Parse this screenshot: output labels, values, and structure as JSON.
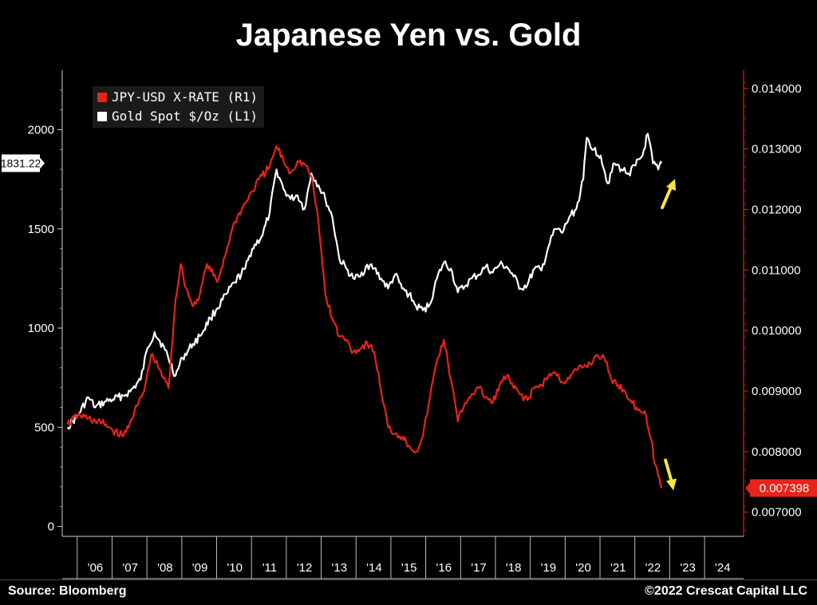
{
  "title": "Japanese Yen vs. Gold",
  "source": "Source: Bloomberg",
  "copyright": "©2022 Crescat Capital LLC",
  "legend": [
    {
      "label": "JPY-USD X-RATE (R1)",
      "color": "#e8231a"
    },
    {
      "label": "Gold Spot $/Oz (L1)",
      "color": "#ffffff"
    }
  ],
  "chart_data": {
    "type": "line",
    "title": "Japanese Yen vs. Gold",
    "x_tick_labels": [
      "'06",
      "'07",
      "'08",
      "'09",
      "'10",
      "'11",
      "'12",
      "'13",
      "'14",
      "'15",
      "'16",
      "'17",
      "'18",
      "'19",
      "'20",
      "'21",
      "'22",
      "'23",
      "'24"
    ],
    "y_left": {
      "ticks": [
        "0",
        "500",
        "1000",
        "1500",
        "2000"
      ],
      "range": [
        -50,
        2300
      ],
      "last_value_label": "1831.22"
    },
    "y_right": {
      "ticks": [
        "0.007000",
        "0.008000",
        "0.009000",
        "0.010000",
        "0.011000",
        "0.012000",
        "0.013000",
        "0.014000"
      ],
      "range": [
        0.0066,
        0.0143
      ],
      "last_value_label": "0.007398"
    },
    "grid": false,
    "legend_position": "top-left",
    "annotations": [
      {
        "text": "up arrow",
        "color": "#f5e642",
        "series": "Gold Spot $/Oz (L1)"
      },
      {
        "text": "down arrow",
        "color": "#f5e642",
        "series": "JPY-USD X-RATE (R1)"
      }
    ],
    "series": [
      {
        "name": "Gold Spot $/Oz (L1)",
        "axis": "left",
        "color": "#ffffff",
        "x": [
          2005.7,
          2006.0,
          2006.3,
          2006.5,
          2006.8,
          2007.0,
          2007.3,
          2007.5,
          2007.8,
          2008.0,
          2008.2,
          2008.5,
          2008.8,
          2009.0,
          2009.3,
          2009.5,
          2009.8,
          2010.0,
          2010.3,
          2010.5,
          2010.8,
          2011.0,
          2011.3,
          2011.5,
          2011.7,
          2011.9,
          2012.1,
          2012.3,
          2012.5,
          2012.7,
          2012.9,
          2013.1,
          2013.3,
          2013.5,
          2013.7,
          2013.9,
          2014.1,
          2014.3,
          2014.5,
          2014.7,
          2014.9,
          2015.1,
          2015.3,
          2015.5,
          2015.7,
          2015.9,
          2016.1,
          2016.3,
          2016.5,
          2016.7,
          2016.9,
          2017.1,
          2017.3,
          2017.5,
          2017.7,
          2017.9,
          2018.1,
          2018.3,
          2018.5,
          2018.7,
          2018.9,
          2019.1,
          2019.3,
          2019.5,
          2019.7,
          2019.9,
          2020.1,
          2020.3,
          2020.5,
          2020.6,
          2020.8,
          2021.0,
          2021.2,
          2021.4,
          2021.6,
          2021.8,
          2022.0,
          2022.2,
          2022.35,
          2022.5,
          2022.65,
          2022.75
        ],
        "values": [
          500,
          560,
          650,
          600,
          630,
          640,
          660,
          680,
          740,
          900,
          980,
          890,
          760,
          850,
          920,
          960,
          1050,
          1100,
          1180,
          1230,
          1300,
          1400,
          1470,
          1580,
          1800,
          1700,
          1650,
          1670,
          1600,
          1780,
          1720,
          1650,
          1560,
          1350,
          1300,
          1250,
          1260,
          1320,
          1300,
          1250,
          1200,
          1270,
          1200,
          1170,
          1110,
          1090,
          1120,
          1250,
          1330,
          1300,
          1180,
          1210,
          1250,
          1270,
          1310,
          1280,
          1320,
          1310,
          1260,
          1200,
          1220,
          1300,
          1290,
          1410,
          1500,
          1480,
          1560,
          1600,
          1750,
          1960,
          1900,
          1870,
          1730,
          1830,
          1800,
          1780,
          1820,
          1870,
          1980,
          1830,
          1800,
          1831.22
        ]
      },
      {
        "name": "JPY-USD X-RATE (R1)",
        "axis": "right",
        "color": "#e8231a",
        "x": [
          2005.7,
          2006.0,
          2006.3,
          2006.5,
          2006.8,
          2007.0,
          2007.3,
          2007.5,
          2007.7,
          2007.9,
          2008.1,
          2008.3,
          2008.6,
          2008.8,
          2008.95,
          2009.1,
          2009.3,
          2009.5,
          2009.7,
          2010.0,
          2010.3,
          2010.5,
          2010.7,
          2011.0,
          2011.2,
          2011.5,
          2011.7,
          2011.9,
          2012.1,
          2012.3,
          2012.5,
          2012.7,
          2012.9,
          2013.1,
          2013.3,
          2013.5,
          2013.7,
          2013.9,
          2014.1,
          2014.3,
          2014.5,
          2014.7,
          2014.9,
          2015.1,
          2015.3,
          2015.5,
          2015.7,
          2015.9,
          2016.1,
          2016.3,
          2016.5,
          2016.7,
          2016.9,
          2017.1,
          2017.3,
          2017.5,
          2017.7,
          2017.9,
          2018.1,
          2018.3,
          2018.5,
          2018.7,
          2018.9,
          2019.1,
          2019.3,
          2019.5,
          2019.7,
          2019.9,
          2020.1,
          2020.3,
          2020.5,
          2020.7,
          2020.9,
          2021.1,
          2021.3,
          2021.5,
          2021.7,
          2021.9,
          2022.1,
          2022.3,
          2022.45,
          2022.55,
          2022.65,
          2022.75
        ],
        "values": [
          0.00845,
          0.0086,
          0.00855,
          0.0085,
          0.00845,
          0.00835,
          0.00825,
          0.0085,
          0.00875,
          0.009,
          0.0096,
          0.0094,
          0.00905,
          0.0105,
          0.0111,
          0.0107,
          0.0104,
          0.0106,
          0.0111,
          0.0108,
          0.0114,
          0.0118,
          0.012,
          0.0123,
          0.0125,
          0.0127,
          0.01305,
          0.0128,
          0.0126,
          0.0128,
          0.01275,
          0.01255,
          0.0118,
          0.0106,
          0.0102,
          0.0099,
          0.00985,
          0.00965,
          0.0097,
          0.0098,
          0.00965,
          0.009,
          0.0084,
          0.0083,
          0.00825,
          0.0081,
          0.008,
          0.00825,
          0.0089,
          0.0095,
          0.00985,
          0.0092,
          0.0085,
          0.0088,
          0.00895,
          0.00905,
          0.0089,
          0.0088,
          0.0091,
          0.00925,
          0.00905,
          0.00895,
          0.00885,
          0.00905,
          0.0091,
          0.00925,
          0.0093,
          0.00915,
          0.0092,
          0.00935,
          0.0094,
          0.00945,
          0.0096,
          0.00955,
          0.0092,
          0.0091,
          0.009,
          0.0088,
          0.0087,
          0.0086,
          0.0082,
          0.0078,
          0.0076,
          0.007398
        ]
      }
    ]
  }
}
